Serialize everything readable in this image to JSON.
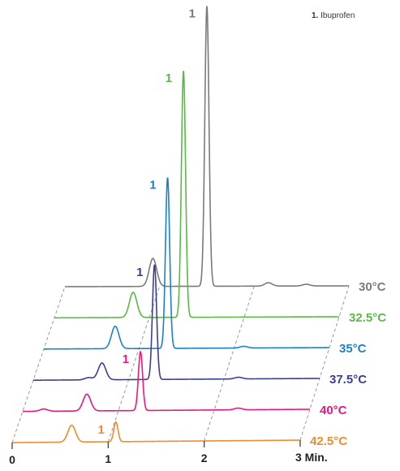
{
  "chart_data": {
    "type": "line",
    "title": "",
    "legend": [
      {
        "number": "1.",
        "label": "Ibuprofen"
      }
    ],
    "x_axis": {
      "range": [
        0,
        3
      ],
      "ticks": [
        {
          "value": 0,
          "label": "0"
        },
        {
          "value": 1,
          "label": "1"
        },
        {
          "value": 2,
          "label": "2"
        },
        {
          "value": 3,
          "label": "3 Min."
        }
      ]
    },
    "peak_label": "1",
    "series": [
      {
        "name": "30°C",
        "color": "#7a7a7a",
        "main_peak": {
          "x": 1.5,
          "height": 1.0
        },
        "minor_peaks": [
          {
            "x": 0.93,
            "height": 0.1
          },
          {
            "x": 2.15,
            "height": 0.012
          },
          {
            "x": 2.55,
            "height": 0.006
          }
        ]
      },
      {
        "name": "32.5°C",
        "color": "#5ab946",
        "main_peak": {
          "x": 1.36,
          "height": 0.88
        },
        "minor_peaks": [
          {
            "x": 0.83,
            "height": 0.09
          }
        ]
      },
      {
        "name": "35°C",
        "color": "#1a82c8",
        "main_peak": {
          "x": 1.3,
          "height": 0.61
        },
        "minor_peaks": [
          {
            "x": 0.75,
            "height": 0.08
          },
          {
            "x": 2.1,
            "height": 0.006
          }
        ]
      },
      {
        "name": "37.5°C",
        "color": "#3b3f94",
        "main_peak": {
          "x": 1.27,
          "height": 0.41
        },
        "minor_peaks": [
          {
            "x": 0.72,
            "height": 0.06
          },
          {
            "x": 0.58,
            "height": 0.008
          },
          {
            "x": 2.15,
            "height": 0.006
          }
        ]
      },
      {
        "name": "40°C",
        "color": "#e8197e",
        "main_peak": {
          "x": 1.23,
          "height": 0.21
        },
        "minor_peaks": [
          {
            "x": 0.67,
            "height": 0.06
          },
          {
            "x": 0.22,
            "height": 0.008
          },
          {
            "x": 2.25,
            "height": 0.006
          }
        ]
      },
      {
        "name": "42.5°C",
        "color": "#f28b2e",
        "main_peak": {
          "x": 1.08,
          "height": 0.07
        },
        "minor_peaks": [
          {
            "x": 0.62,
            "height": 0.06
          }
        ]
      }
    ]
  }
}
